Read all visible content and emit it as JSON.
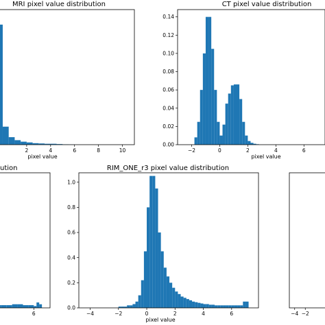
{
  "colors": {
    "bar": "#1f77b4",
    "axes": "#000000",
    "background": "#ffffff"
  },
  "chart_data": [
    {
      "type": "bar",
      "title": "MRI pixel value distribution",
      "xlabel": "pixel value",
      "ylabel": "",
      "xlim": [
        -0.8,
        11.0
      ],
      "ylim": [
        0,
        0.9
      ],
      "xticks": [
        "2",
        "4",
        "6",
        "8",
        "10"
      ],
      "yticks": [],
      "bin_edges": [
        -0.5,
        0.0,
        0.5,
        1.0,
        1.5,
        2.0,
        2.5,
        3.0,
        3.5,
        4.0,
        4.5,
        5.0,
        5.5,
        6.0
      ],
      "values": [
        0.8,
        0.12,
        0.05,
        0.03,
        0.02,
        0.015,
        0.01,
        0.008,
        0.006,
        0.006,
        0.004,
        0.002,
        0.001
      ]
    },
    {
      "type": "bar",
      "title": "CT pixel value distribution",
      "xlabel": "pixel value",
      "ylabel": "",
      "xlim": [
        -3.0,
        7.5
      ],
      "ylim": [
        0,
        0.148
      ],
      "xticks": [
        "-2",
        "0",
        "2",
        "4",
        "6"
      ],
      "yticks": [
        "0.00",
        "0.02",
        "0.04",
        "0.06",
        "0.08",
        "0.10",
        "0.12",
        "0.14"
      ],
      "bin_edges": [
        -1.8,
        -1.6,
        -1.4,
        -1.2,
        -1.0,
        -0.8,
        -0.6,
        -0.4,
        -0.2,
        0.0,
        0.2,
        0.4,
        0.6,
        0.8,
        1.0,
        1.2,
        1.4,
        1.6,
        1.8,
        2.0,
        2.2,
        2.4,
        2.6,
        2.8
      ],
      "values": [
        0.008,
        0.025,
        0.06,
        0.1,
        0.14,
        0.14,
        0.105,
        0.06,
        0.025,
        0.01,
        0.022,
        0.045,
        0.056,
        0.065,
        0.066,
        0.066,
        0.05,
        0.025,
        0.01,
        0.004,
        0.002,
        0.001,
        0.0005
      ]
    },
    {
      "type": "bar",
      "title": "",
      "title_visible": "ution",
      "xlabel": "",
      "ylabel": "",
      "xlim": [
        -1.5,
        9.0
      ],
      "ylim": [
        0,
        0.15
      ],
      "xticks": [
        "6"
      ],
      "yticks": [],
      "bin_edges": [
        -1.0,
        0.0,
        1.0,
        2.0,
        3.0,
        4.0,
        5.0,
        6.0,
        6.5,
        7.0,
        7.5
      ],
      "values": [
        0.003,
        0.003,
        0.003,
        0.004,
        0.004,
        0.003,
        0.003,
        0.002,
        0.006,
        0.004
      ]
    },
    {
      "type": "bar",
      "title": "RIM_ONE_r3 pixel value distribution",
      "xlabel": "pixel value",
      "ylabel": "",
      "xlim": [
        -4.8,
        7.9
      ],
      "ylim": [
        0,
        1.075
      ],
      "xticks": [
        "-4",
        "-2",
        "0",
        "2",
        "4",
        "6"
      ],
      "yticks": [
        "0.0",
        "0.2",
        "0.4",
        "0.6",
        "0.8",
        "1.0"
      ],
      "bin_edges": [
        -2.0,
        -1.8,
        -1.6,
        -1.4,
        -1.2,
        -1.0,
        -0.8,
        -0.6,
        -0.4,
        -0.2,
        0.0,
        0.2,
        0.4,
        0.6,
        0.8,
        1.0,
        1.2,
        1.4,
        1.6,
        1.8,
        2.0,
        2.2,
        2.4,
        2.6,
        2.8,
        3.0,
        3.2,
        3.4,
        3.6,
        3.8,
        4.0,
        4.2,
        4.4,
        4.6,
        4.8,
        5.0,
        5.2,
        5.4,
        5.6,
        5.8,
        6.0,
        6.2,
        6.4,
        6.6,
        6.8,
        7.0,
        7.2
      ],
      "values": [
        0.01,
        0.01,
        0.01,
        0.02,
        0.02,
        0.03,
        0.05,
        0.1,
        0.22,
        0.45,
        0.8,
        1.05,
        1.05,
        0.95,
        0.6,
        0.45,
        0.32,
        0.25,
        0.2,
        0.16,
        0.13,
        0.11,
        0.09,
        0.08,
        0.07,
        0.06,
        0.05,
        0.045,
        0.04,
        0.035,
        0.03,
        0.03,
        0.025,
        0.025,
        0.02,
        0.02,
        0.02,
        0.02,
        0.02,
        0.02,
        0.02,
        0.02,
        0.02,
        0.02,
        0.05,
        0.05
      ]
    },
    {
      "type": "bar",
      "title": "",
      "xlabel": "",
      "ylabel": "",
      "xlim": [
        -5.0,
        3.0
      ],
      "ylim": [
        0,
        0.15
      ],
      "xticks": [
        "-4",
        "-2"
      ],
      "yticks": [],
      "bin_edges": [],
      "values": []
    }
  ]
}
